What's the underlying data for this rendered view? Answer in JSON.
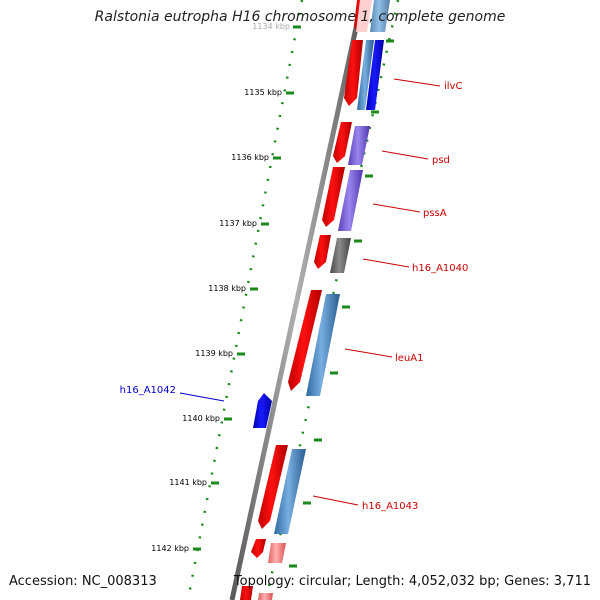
{
  "title": "Ralstonia eutropha H16 chromosome 1, complete genome",
  "footer": {
    "accession": "Accession: NC_008313",
    "summary": "Topology: circular; Length: 4,052,032 bp; Genes: 3,711"
  },
  "scale_labels": [
    "1134 kbp",
    "1135 kbp",
    "1136 kbp",
    "1137 kbp",
    "1138 kbp",
    "1139 kbp",
    "1140 kbp",
    "1141 kbp",
    "1142 kbp"
  ],
  "gene_labels": [
    {
      "text": "ilvC",
      "color": "#cc0000"
    },
    {
      "text": "psd",
      "color": "#cc0000"
    },
    {
      "text": "pssA",
      "color": "#cc0000"
    },
    {
      "text": "h16_A1040",
      "color": "#cc0000"
    },
    {
      "text": "leuA1",
      "color": "#cc0000"
    },
    {
      "text": "h16_A1042",
      "color": "#0000cc"
    },
    {
      "text": "h16_A1043",
      "color": "#cc0000"
    }
  ],
  "colors": {
    "backbone": "#808080",
    "forward_cds": "#ee0000",
    "reverse_gene": "#0000ee",
    "ruler": "#1a8a1a",
    "cog_blue": "#4a86c0",
    "cog_purple": "#7b62d4",
    "cog_gray": "#6e6e6e",
    "pink": "#f08080"
  }
}
